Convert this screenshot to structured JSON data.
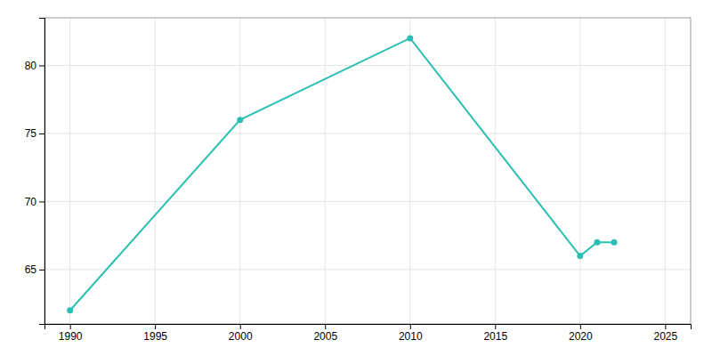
{
  "chart_data": {
    "type": "line",
    "x": [
      1990,
      2000,
      2010,
      2020,
      2021,
      2022
    ],
    "values": [
      62,
      76,
      82,
      66,
      67,
      67
    ],
    "color": "#2bbfb3",
    "marker": "circle",
    "xlim": [
      1988.5,
      2026.5
    ],
    "ylim": [
      61.0,
      83.5
    ],
    "xticks": [
      1990,
      1995,
      2000,
      2005,
      2010,
      2015,
      2020,
      2025
    ],
    "yticks": [
      65,
      70,
      75,
      80
    ],
    "grid": true
  }
}
